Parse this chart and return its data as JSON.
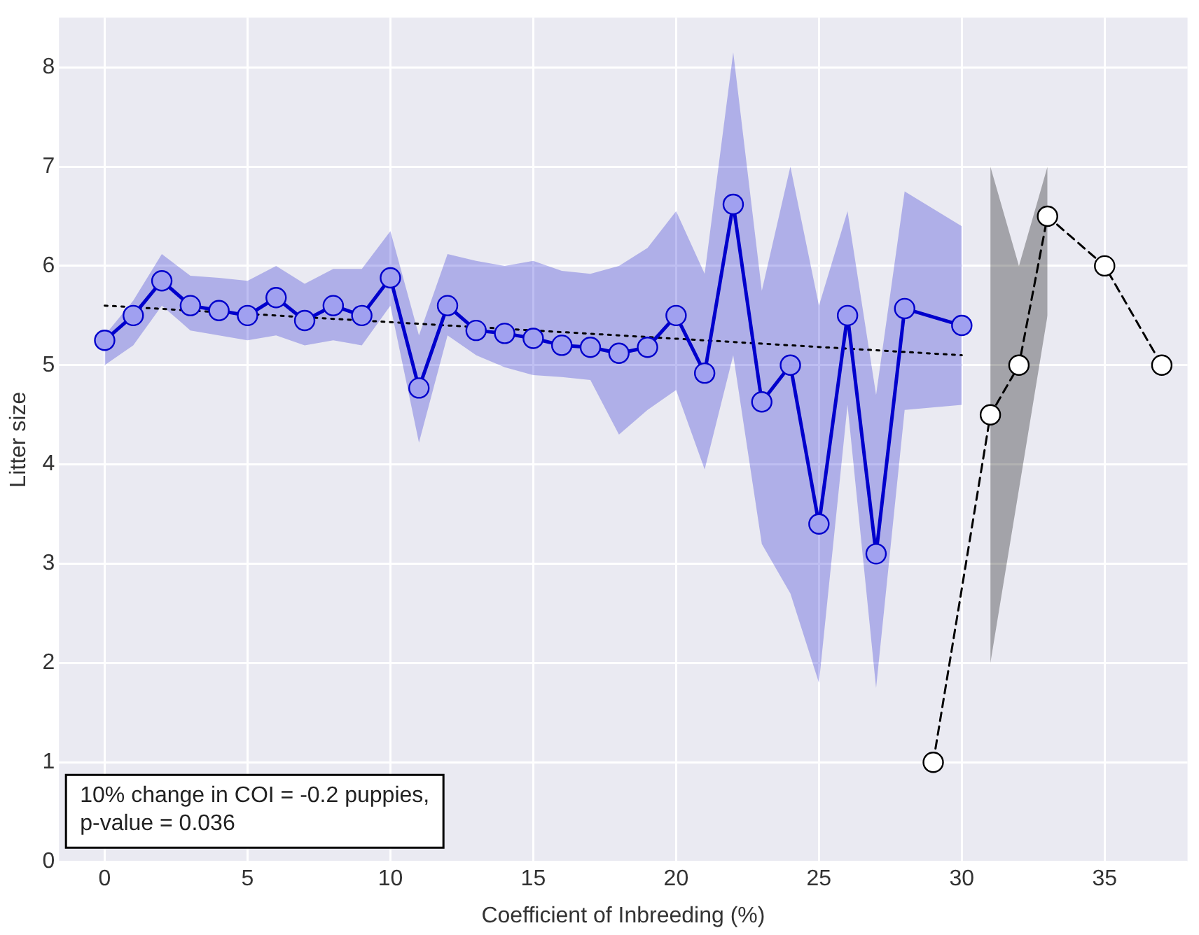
{
  "chart_data": {
    "type": "line",
    "xlabel": "Coefficient of Inbreeding (%)",
    "ylabel": "Litter size",
    "xlim": [
      -1.6,
      37.9
    ],
    "ylim": [
      0,
      8.5
    ],
    "xticks": [
      0,
      5,
      10,
      15,
      20,
      25,
      30,
      35
    ],
    "yticks": [
      0,
      1,
      2,
      3,
      4,
      5,
      6,
      7,
      8
    ],
    "grid": true,
    "legend": false,
    "series": [
      {
        "color": "#0000cc",
        "marker": "circle",
        "line_style": "solid",
        "x": [
          0,
          1,
          2,
          3,
          4,
          5,
          6,
          7,
          8,
          9,
          10,
          11,
          12,
          13,
          14,
          15,
          16,
          17,
          18,
          19,
          20,
          21,
          22,
          23,
          24,
          25,
          26,
          27,
          28,
          30
        ],
        "values": [
          5.25,
          5.5,
          5.85,
          5.6,
          5.55,
          5.5,
          5.68,
          5.45,
          5.6,
          5.5,
          5.88,
          4.77,
          5.6,
          5.35,
          5.32,
          5.27,
          5.2,
          5.18,
          5.12,
          5.18,
          5.5,
          4.92,
          6.62,
          4.63,
          5.0,
          3.4,
          5.5,
          3.1,
          5.57,
          5.4
        ],
        "lower": [
          5.0,
          5.2,
          5.6,
          5.35,
          5.3,
          5.25,
          5.3,
          5.2,
          5.25,
          5.2,
          5.6,
          4.22,
          5.3,
          5.1,
          4.98,
          4.9,
          4.88,
          4.85,
          4.3,
          4.55,
          4.75,
          3.95,
          5.1,
          3.2,
          2.7,
          1.8,
          4.6,
          1.75,
          4.55,
          4.6
        ],
        "upper": [
          5.3,
          5.65,
          6.12,
          5.9,
          5.88,
          5.85,
          6.0,
          5.82,
          5.97,
          5.97,
          6.35,
          5.3,
          6.12,
          6.05,
          6.0,
          6.05,
          5.95,
          5.92,
          6.0,
          6.18,
          6.55,
          5.92,
          8.15,
          5.75,
          7.0,
          5.6,
          6.55,
          4.7,
          6.75,
          6.4
        ]
      },
      {
        "color": "#000000",
        "marker": "circle",
        "line_style": "dashed",
        "x": [
          29,
          31,
          32,
          33,
          35,
          37
        ],
        "values": [
          1,
          4.5,
          5,
          6.5,
          6,
          5
        ],
        "lower": [
          null,
          2,
          3.75,
          5.5,
          null,
          null
        ],
        "upper": [
          null,
          7,
          6,
          7,
          null,
          null
        ]
      },
      {
        "color": "#000000",
        "marker": "none",
        "line_style": "dotted",
        "x": [
          0,
          30
        ],
        "values": [
          5.6,
          5.1
        ]
      }
    ],
    "annotations": [
      "10% change in COI = -0.2 puppies,\np-value = 0.036"
    ]
  }
}
